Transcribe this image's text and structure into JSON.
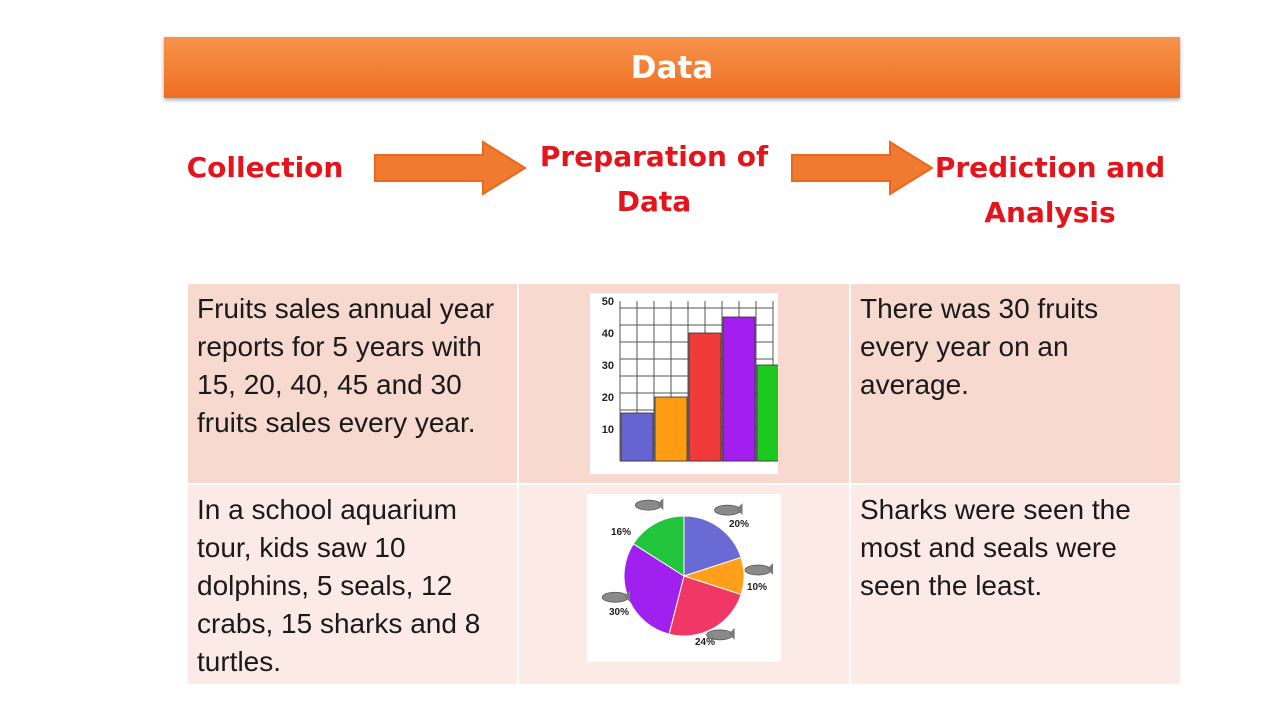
{
  "title": "Data",
  "flow": {
    "steps": [
      "Collection",
      "Preparation of Data",
      "Prediction and Analysis"
    ],
    "step_lines": [
      [
        "Collection"
      ],
      [
        "Preparation of",
        "Data"
      ],
      [
        "Prediction and",
        "Analysis"
      ]
    ],
    "arrow_color": "#f07a30"
  },
  "rows": [
    {
      "collection": "Fruits sales annual year reports for 5 years with 15, 20, 40, 45 and 30 fruits sales every year.",
      "analysis": "There was 30 fruits every year on an average."
    },
    {
      "collection": "In a school aquarium tour, kids saw 10 dolphins, 5 seals, 12 crabs, 15 sharks and 8 turtles.",
      "analysis": "Sharks were seen the most and seals were seen the least."
    }
  ],
  "chart_data": [
    {
      "type": "bar",
      "values": [
        15,
        20,
        40,
        45,
        30
      ],
      "colors": [
        "#6464d2",
        "#ff9c12",
        "#f03a3a",
        "#a21ff0",
        "#1ec81e"
      ],
      "yticks": [
        10,
        20,
        30,
        40,
        50
      ],
      "ylim": [
        0,
        50
      ],
      "grid": true
    },
    {
      "type": "pie",
      "slices": [
        {
          "label": "20%",
          "value": 20,
          "color": "#6a6ad4",
          "icon": "dolphin-icon"
        },
        {
          "label": "10%",
          "value": 10,
          "color": "#ff9f1a",
          "icon": "seal-icon"
        },
        {
          "label": "24%",
          "value": 24,
          "color": "#f03765",
          "icon": "crab-icon"
        },
        {
          "label": "30%",
          "value": 30,
          "color": "#a020f0",
          "icon": "shark-icon"
        },
        {
          "label": "16%",
          "value": 16,
          "color": "#21c43a",
          "icon": "turtle-icon"
        }
      ]
    }
  ]
}
